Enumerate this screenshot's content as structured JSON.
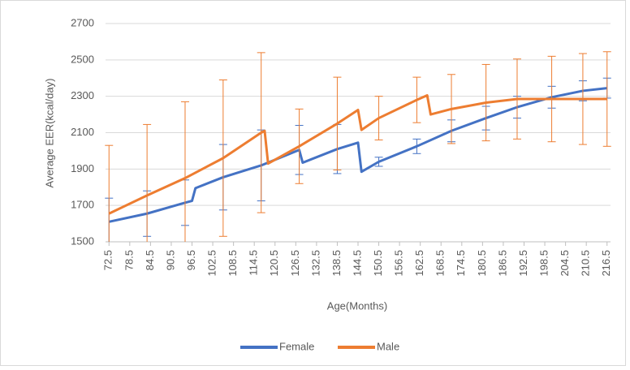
{
  "chart_data": {
    "type": "line",
    "xlabel": "Age(Months)",
    "ylabel": "Average EER(kcal/day)",
    "xlim": [
      71.5,
      217.5
    ],
    "xticks": [
      72.5,
      78.5,
      84.5,
      90.5,
      96.5,
      102.5,
      108.5,
      114.5,
      120.5,
      126.5,
      132.5,
      138.5,
      144.5,
      150.5,
      156.5,
      162.5,
      168.5,
      174.5,
      180.5,
      186.5,
      192.5,
      198.5,
      204.5,
      210.5,
      216.5
    ],
    "ylim": [
      1500,
      2700
    ],
    "yticks": [
      1500,
      1700,
      1900,
      2100,
      2300,
      2500,
      2700
    ],
    "grid": true,
    "legend": "bottom",
    "series": [
      {
        "name": "Female",
        "color": "#4472c4",
        "x": [
          72.5,
          83.5,
          94.5,
          96.5,
          97.5,
          105.5,
          116.5,
          127.5,
          128.5,
          138.5,
          144.5,
          145.5,
          150.5,
          161.5,
          171.5,
          181.5,
          190.5,
          200.5,
          209.5,
          216.5
        ],
        "values": [
          1610,
          1655,
          1715,
          1725,
          1795,
          1855,
          1920,
          2005,
          1935,
          2010,
          2045,
          1885,
          1940,
          2025,
          2110,
          2180,
          2240,
          2295,
          2330,
          2345
        ],
        "errors": [
          130,
          125,
          125,
          null,
          null,
          180,
          195,
          135,
          null,
          135,
          null,
          null,
          25,
          40,
          60,
          65,
          60,
          60,
          55,
          55
        ]
      },
      {
        "name": "Male",
        "color": "#ed7d31",
        "x": [
          72.5,
          83.5,
          94.5,
          105.5,
          116.5,
          117.5,
          118.5,
          127.5,
          138.5,
          144.5,
          145.5,
          150.5,
          161.5,
          164.5,
          165.5,
          171.5,
          181.5,
          190.5,
          200.5,
          209.5,
          216.5
        ],
        "values": [
          1655,
          1755,
          1850,
          1960,
          2100,
          2110,
          1930,
          2025,
          2150,
          2225,
          2115,
          2180,
          2280,
          2305,
          2200,
          2230,
          2265,
          2285,
          2285,
          2285,
          2285
        ],
        "errors": [
          375,
          390,
          420,
          430,
          440,
          null,
          null,
          205,
          255,
          null,
          null,
          120,
          125,
          null,
          null,
          190,
          210,
          220,
          235,
          250,
          260
        ]
      }
    ]
  }
}
